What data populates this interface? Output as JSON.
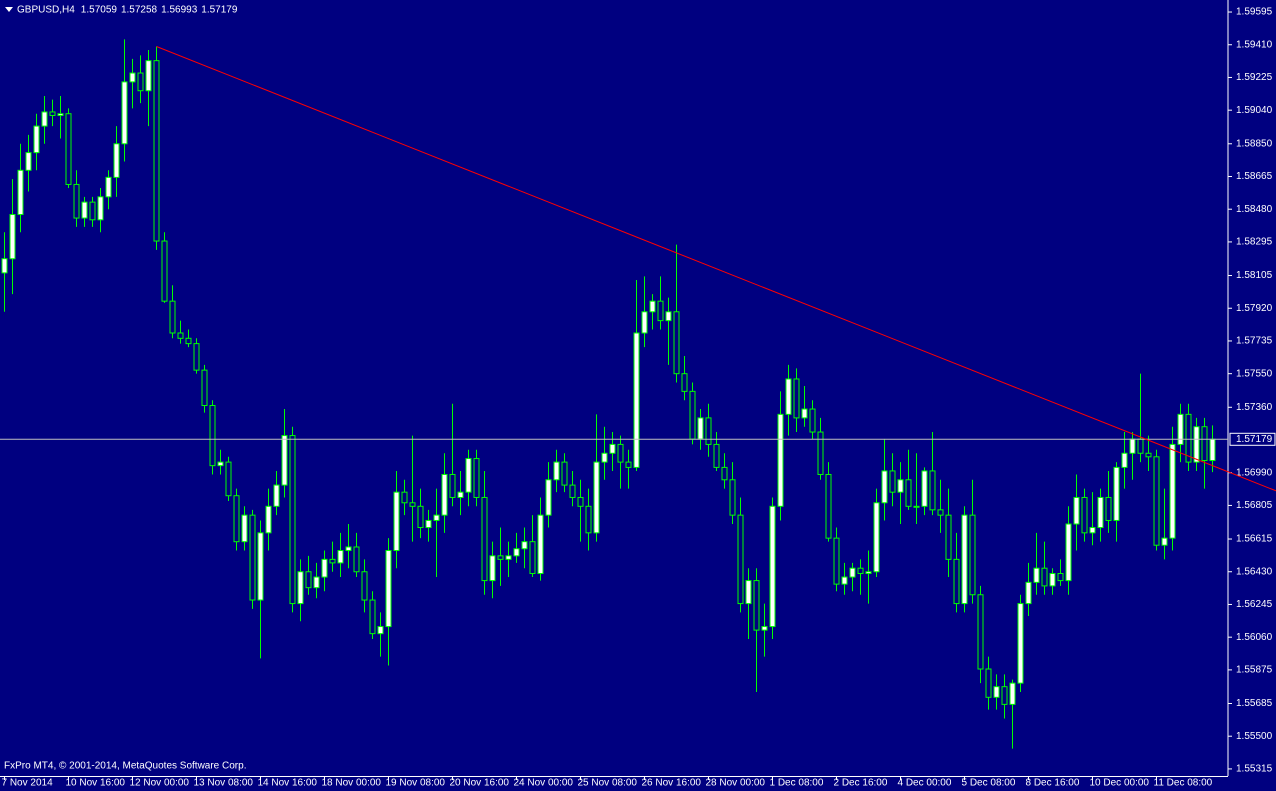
{
  "chart_data": {
    "type": "candlestick",
    "title": "GBPUSD,H4",
    "ohlc_header": [
      1.57059,
      1.57258,
      1.56993,
      1.57179
    ],
    "footer": "FxPro MT4, © 2001-2014, MetaQuotes Software Corp.",
    "categories": [
      "7 Nov 2014",
      null,
      null,
      null,
      null,
      null,
      null,
      null,
      "10 Nov 16:00",
      null,
      null,
      null,
      null,
      null,
      null,
      null,
      "12 Nov 00:00",
      null,
      null,
      null,
      null,
      null,
      null,
      null,
      "13 Nov 08:00",
      null,
      null,
      null,
      null,
      null,
      null,
      null,
      "14 Nov 16:00",
      null,
      null,
      null,
      null,
      null,
      null,
      null,
      "18 Nov 00:00",
      null,
      null,
      null,
      null,
      null,
      null,
      null,
      "19 Nov 08:00",
      null,
      null,
      null,
      null,
      null,
      null,
      null,
      "20 Nov 16:00",
      null,
      null,
      null,
      null,
      null,
      null,
      null,
      "24 Nov 00:00",
      null,
      null,
      null,
      null,
      null,
      null,
      null,
      "25 Nov 08:00",
      null,
      null,
      null,
      null,
      null,
      null,
      null,
      "26 Nov 16:00",
      null,
      null,
      null,
      null,
      null,
      null,
      null,
      "28 Nov 00:00",
      null,
      null,
      null,
      null,
      null,
      null,
      null,
      "1 Dec 08:00",
      null,
      null,
      null,
      null,
      null,
      null,
      null,
      "2 Dec 16:00",
      null,
      null,
      null,
      null,
      null,
      null,
      null,
      "4 Dec 00:00",
      null,
      null,
      null,
      null,
      null,
      null,
      null,
      "5 Dec 08:00",
      null,
      null,
      null,
      null,
      null,
      null,
      null,
      "8 Dec 16:00",
      null,
      null,
      null,
      null,
      null,
      null,
      null,
      "10 Dec 00:00",
      null,
      null,
      null,
      null,
      null,
      null,
      null,
      "11 Dec 08:00",
      null,
      null,
      null,
      null,
      null,
      null,
      null
    ],
    "open": [
      1.5812,
      1.582,
      1.5845,
      1.587,
      1.588,
      1.5895,
      1.5903,
      1.5901,
      1.5902,
      1.5862,
      1.5843,
      1.5852,
      1.5842,
      1.5855,
      1.5866,
      1.5885,
      1.592,
      1.5925,
      1.5915,
      1.5932,
      1.583,
      1.5796,
      1.5778,
      1.5775,
      1.5772,
      1.5757,
      1.5737,
      1.5703,
      1.5705,
      1.5686,
      1.566,
      1.5675,
      1.5627,
      1.5665,
      1.568,
      1.5692,
      1.572,
      1.5625,
      1.5643,
      1.5634,
      1.564,
      1.565,
      1.5648,
      1.5655,
      1.5657,
      1.5643,
      1.5627,
      1.5608,
      1.5612,
      1.5655,
      1.5688,
      1.5682,
      1.568,
      1.5668,
      1.5672,
      1.5675,
      1.5698,
      1.5685,
      1.5688,
      1.5707,
      1.5685,
      1.5638,
      1.5652,
      1.565,
      1.5652,
      1.5656,
      1.566,
      1.5642,
      1.5675,
      1.5695,
      1.5705,
      1.5692,
      1.5685,
      1.568,
      1.5665,
      1.5705,
      1.571,
      1.5715,
      1.5705,
      1.5702,
      1.5778,
      1.579,
      1.5796,
      1.5785,
      1.579,
      1.5755,
      1.5745,
      1.5718,
      1.573,
      1.5715,
      1.5702,
      1.5695,
      1.5675,
      1.5625,
      1.5638,
      1.561,
      1.5612,
      1.568,
      1.5732,
      1.5752,
      1.573,
      1.5735,
      1.5722,
      1.5698,
      1.5662,
      1.5636,
      1.564,
      1.5645,
      1.5642,
      1.5643,
      1.5682,
      1.57,
      1.5688,
      1.5695,
      1.568,
      1.568,
      1.57,
      1.5678,
      1.5675,
      1.565,
      1.5625,
      1.5675,
      1.563,
      1.5588,
      1.5572,
      1.5578,
      1.5568,
      1.558,
      1.5625,
      1.5637,
      1.5645,
      1.5635,
      1.5642,
      1.5638,
      1.567,
      1.5685,
      1.5665,
      1.5668,
      1.5685,
      1.5672,
      1.5702,
      1.571,
      1.5718,
      1.571,
      1.5708,
      1.5658,
      1.5662,
      1.5715,
      1.5732,
      1.5705,
      1.5725,
      1.57059
    ],
    "high": [
      1.5835,
      1.5865,
      1.5885,
      1.589,
      1.5902,
      1.5912,
      1.591,
      1.5912,
      1.5905,
      1.587,
      1.5855,
      1.5855,
      1.586,
      1.587,
      1.5895,
      1.5944,
      1.5933,
      1.5935,
      1.5938,
      1.594,
      1.5835,
      1.5805,
      1.5785,
      1.578,
      1.5775,
      1.576,
      1.574,
      1.5712,
      1.5708,
      1.569,
      1.568,
      1.5678,
      1.5672,
      1.569,
      1.57,
      1.5735,
      1.5725,
      1.565,
      1.5652,
      1.5648,
      1.5655,
      1.566,
      1.5665,
      1.567,
      1.5665,
      1.565,
      1.5632,
      1.562,
      1.5662,
      1.57,
      1.5695,
      1.572,
      1.569,
      1.5678,
      1.569,
      1.571,
      1.5738,
      1.57,
      1.5712,
      1.5712,
      1.57,
      1.566,
      1.5668,
      1.566,
      1.5665,
      1.5668,
      1.5675,
      1.5685,
      1.5705,
      1.5712,
      1.571,
      1.57,
      1.5695,
      1.569,
      1.5732,
      1.5725,
      1.5722,
      1.572,
      1.5712,
      1.5808,
      1.581,
      1.58,
      1.581,
      1.5798,
      1.5828,
      1.5765,
      1.575,
      1.5735,
      1.5738,
      1.5722,
      1.571,
      1.5705,
      1.5685,
      1.5645,
      1.5645,
      1.5625,
      1.5685,
      1.5745,
      1.576,
      1.5758,
      1.5748,
      1.574,
      1.573,
      1.5705,
      1.5668,
      1.5648,
      1.5648,
      1.565,
      1.5655,
      1.569,
      1.5718,
      1.571,
      1.5705,
      1.5712,
      1.571,
      1.5702,
      1.5722,
      1.5695,
      1.569,
      1.5665,
      1.568,
      1.5695,
      1.5635,
      1.5595,
      1.5585,
      1.5585,
      1.5582,
      1.563,
      1.5648,
      1.5665,
      1.566,
      1.5645,
      1.565,
      1.568,
      1.5698,
      1.569,
      1.5688,
      1.569,
      1.57,
      1.5705,
      1.5722,
      1.5722,
      1.5755,
      1.572,
      1.5712,
      1.569,
      1.5725,
      1.5738,
      1.5738,
      1.573,
      1.573,
      1.57258
    ],
    "low": [
      1.579,
      1.58,
      1.5835,
      1.5858,
      1.587,
      1.5885,
      1.5895,
      1.5888,
      1.586,
      1.5838,
      1.5838,
      1.5838,
      1.5835,
      1.5848,
      1.5855,
      1.5875,
      1.5905,
      1.5908,
      1.5895,
      1.5825,
      1.5795,
      1.5775,
      1.5772,
      1.577,
      1.5755,
      1.5733,
      1.5698,
      1.5698,
      1.5683,
      1.5655,
      1.5655,
      1.5622,
      1.5594,
      1.5655,
      1.5675,
      1.5685,
      1.562,
      1.5615,
      1.563,
      1.5628,
      1.5632,
      1.5643,
      1.564,
      1.5645,
      1.564,
      1.562,
      1.5605,
      1.5595,
      1.559,
      1.5645,
      1.5675,
      1.566,
      1.5662,
      1.566,
      1.564,
      1.5665,
      1.568,
      1.5675,
      1.568,
      1.568,
      1.563,
      1.5628,
      1.5635,
      1.564,
      1.5648,
      1.5645,
      1.564,
      1.5638,
      1.5668,
      1.5688,
      1.5688,
      1.568,
      1.566,
      1.5655,
      1.566,
      1.5695,
      1.57,
      1.569,
      1.569,
      1.57,
      1.577,
      1.578,
      1.578,
      1.576,
      1.575,
      1.574,
      1.5715,
      1.5712,
      1.5708,
      1.57,
      1.569,
      1.567,
      1.562,
      1.5605,
      1.5575,
      1.5595,
      1.5605,
      1.5672,
      1.572,
      1.5722,
      1.5725,
      1.5718,
      1.5695,
      1.566,
      1.5632,
      1.563,
      1.5632,
      1.563,
      1.5625,
      1.564,
      1.5672,
      1.568,
      1.567,
      1.5678,
      1.567,
      1.5675,
      1.5675,
      1.5665,
      1.564,
      1.562,
      1.562,
      1.5625,
      1.558,
      1.5565,
      1.5565,
      1.556,
      1.5543,
      1.5575,
      1.5618,
      1.563,
      1.563,
      1.563,
      1.5635,
      1.563,
      1.5655,
      1.566,
      1.5658,
      1.566,
      1.5665,
      1.566,
      1.569,
      1.5695,
      1.5705,
      1.57,
      1.5655,
      1.565,
      1.5655,
      1.5705,
      1.57,
      1.57,
      1.569,
      1.56993
    ],
    "close": [
      1.582,
      1.5845,
      1.587,
      1.588,
      1.5895,
      1.5903,
      1.5901,
      1.5902,
      1.5862,
      1.5843,
      1.5852,
      1.5842,
      1.5855,
      1.5866,
      1.5885,
      1.592,
      1.5925,
      1.5915,
      1.5932,
      1.583,
      1.5796,
      1.5778,
      1.5775,
      1.5772,
      1.5757,
      1.5737,
      1.5703,
      1.5705,
      1.5686,
      1.566,
      1.5675,
      1.5627,
      1.5665,
      1.568,
      1.5692,
      1.572,
      1.5625,
      1.5643,
      1.5634,
      1.564,
      1.565,
      1.5648,
      1.5655,
      1.5657,
      1.5643,
      1.5627,
      1.5608,
      1.5612,
      1.5655,
      1.5688,
      1.5682,
      1.568,
      1.5668,
      1.5672,
      1.5675,
      1.5698,
      1.5685,
      1.5688,
      1.5707,
      1.5685,
      1.5638,
      1.5652,
      1.565,
      1.5652,
      1.5656,
      1.566,
      1.5642,
      1.5675,
      1.5695,
      1.5705,
      1.5692,
      1.5685,
      1.568,
      1.5665,
      1.5705,
      1.571,
      1.5715,
      1.5705,
      1.5702,
      1.5778,
      1.579,
      1.5796,
      1.5785,
      1.579,
      1.5755,
      1.5745,
      1.5718,
      1.573,
      1.5715,
      1.5702,
      1.5695,
      1.5675,
      1.5625,
      1.5638,
      1.561,
      1.5612,
      1.568,
      1.5732,
      1.5752,
      1.573,
      1.5735,
      1.5722,
      1.5698,
      1.5662,
      1.5636,
      1.564,
      1.5645,
      1.5642,
      1.5643,
      1.5682,
      1.57,
      1.5688,
      1.5695,
      1.568,
      1.568,
      1.57,
      1.5678,
      1.5675,
      1.565,
      1.5625,
      1.5675,
      1.563,
      1.5588,
      1.5572,
      1.5578,
      1.5568,
      1.558,
      1.5625,
      1.5637,
      1.5645,
      1.5635,
      1.5642,
      1.5638,
      1.567,
      1.5685,
      1.5665,
      1.5668,
      1.5685,
      1.5672,
      1.5702,
      1.571,
      1.5718,
      1.571,
      1.5708,
      1.5658,
      1.5662,
      1.5715,
      1.5732,
      1.5705,
      1.5725,
      1.57059,
      1.57179
    ],
    "current_price": 1.57179,
    "trendline": {
      "color": "#ff0000",
      "x": [
        19,
        151
      ],
      "values": [
        1.594,
        1.5703
      ]
    },
    "colors": {
      "background": "#000080",
      "bull": "#ffffff",
      "bear": "#000080",
      "outline": "#00ff00",
      "axis": "#ffffff",
      "current_price": "#c0c0c0"
    },
    "ylim": [
      1.55275,
      1.59663
    ],
    "yticks": [
      1.59595,
      {
        "value": 1.5941,
        "label": "1.59410"
      },
      1.59225,
      {
        "value": 1.5904,
        "label": "1.59040"
      },
      {
        "value": 1.5885,
        "label": "1.58850"
      },
      1.58665,
      {
        "value": 1.5848,
        "label": "1.58480"
      },
      1.58295,
      1.58105,
      {
        "value": 1.5792,
        "label": "1.57920"
      },
      1.57735,
      {
        "value": 1.5755,
        "label": "1.57550"
      },
      {
        "value": 1.5736,
        "label": "1.57360"
      },
      {
        "value": 1.5699,
        "label": "1.56990"
      },
      1.56805,
      1.56615,
      {
        "value": 1.5643,
        "label": "1.56430"
      },
      1.56245,
      {
        "value": 1.5606,
        "label": "1.56060"
      },
      1.55875,
      1.55685,
      {
        "value": 1.555,
        "label": "1.55500"
      },
      1.55315
    ],
    "grid": false
  }
}
